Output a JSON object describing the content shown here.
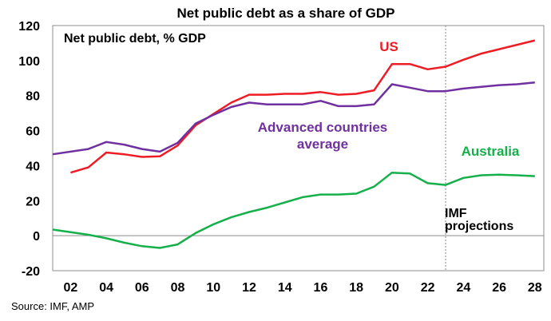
{
  "chart_data": {
    "type": "line",
    "title": "Net public debt as a share of GDP",
    "subtitle": "Net public debt, % GDP",
    "x_tick_labels": [
      "02",
      "04",
      "06",
      "08",
      "10",
      "12",
      "14",
      "16",
      "18",
      "20",
      "22",
      "24",
      "26",
      "28"
    ],
    "x_ticks": [
      2002,
      2004,
      2006,
      2008,
      2010,
      2012,
      2014,
      2016,
      2018,
      2020,
      2022,
      2024,
      2026,
      2028
    ],
    "xlim": [
      2001,
      2028.5
    ],
    "ylim": [
      -20,
      120
    ],
    "y_ticks": [
      -20,
      0,
      20,
      40,
      60,
      80,
      100,
      120
    ],
    "y_tick_labels": [
      "-20",
      "0",
      "20",
      "40",
      "60",
      "80",
      "100",
      "120"
    ],
    "grid": false,
    "x": [
      2001,
      2002,
      2003,
      2004,
      2005,
      2006,
      2007,
      2008,
      2009,
      2010,
      2011,
      2012,
      2013,
      2014,
      2015,
      2016,
      2017,
      2018,
      2019,
      2020,
      2021,
      2022,
      2023,
      2024,
      2025,
      2026,
      2027,
      2028
    ],
    "series": [
      {
        "name": "US",
        "color": "#ee1c25",
        "values": [
          null,
          36,
          39,
          47.5,
          46.5,
          45,
          45.3,
          51.5,
          63,
          69.5,
          76,
          80.5,
          80.5,
          81,
          81,
          82,
          80.5,
          81,
          83,
          98,
          98,
          95,
          96.5,
          100.5,
          104,
          106.5,
          109,
          111.5
        ]
      },
      {
        "name": "Advanced countries average",
        "color": "#7030a0",
        "values": [
          46.5,
          null,
          49.5,
          53.5,
          52,
          49.5,
          48,
          53,
          64,
          69,
          73.5,
          76,
          75,
          75,
          75,
          77,
          74,
          74,
          75,
          86.5,
          84.5,
          82.5,
          82.5,
          84,
          85,
          86,
          86.5,
          87.5
        ]
      },
      {
        "name": "Australia",
        "color": "#16b04b",
        "values": [
          3.5,
          null,
          0.5,
          -1.5,
          -4,
          -6,
          -7,
          -5,
          1.5,
          6.5,
          10.5,
          13.5,
          16,
          19,
          22,
          23.5,
          23.5,
          24,
          28,
          36,
          35.5,
          30,
          29,
          33,
          34.5,
          34.8,
          34.5,
          34
        ]
      }
    ],
    "series_labels": [
      "US",
      "Advanced countries",
      "average",
      "Australia"
    ],
    "annotation": {
      "x": 2023,
      "line1": "IMF",
      "line2": "projections",
      "line_color": "#888888"
    },
    "source": "Source: IMF, AMP",
    "axis_color": "#8c8c8c"
  }
}
